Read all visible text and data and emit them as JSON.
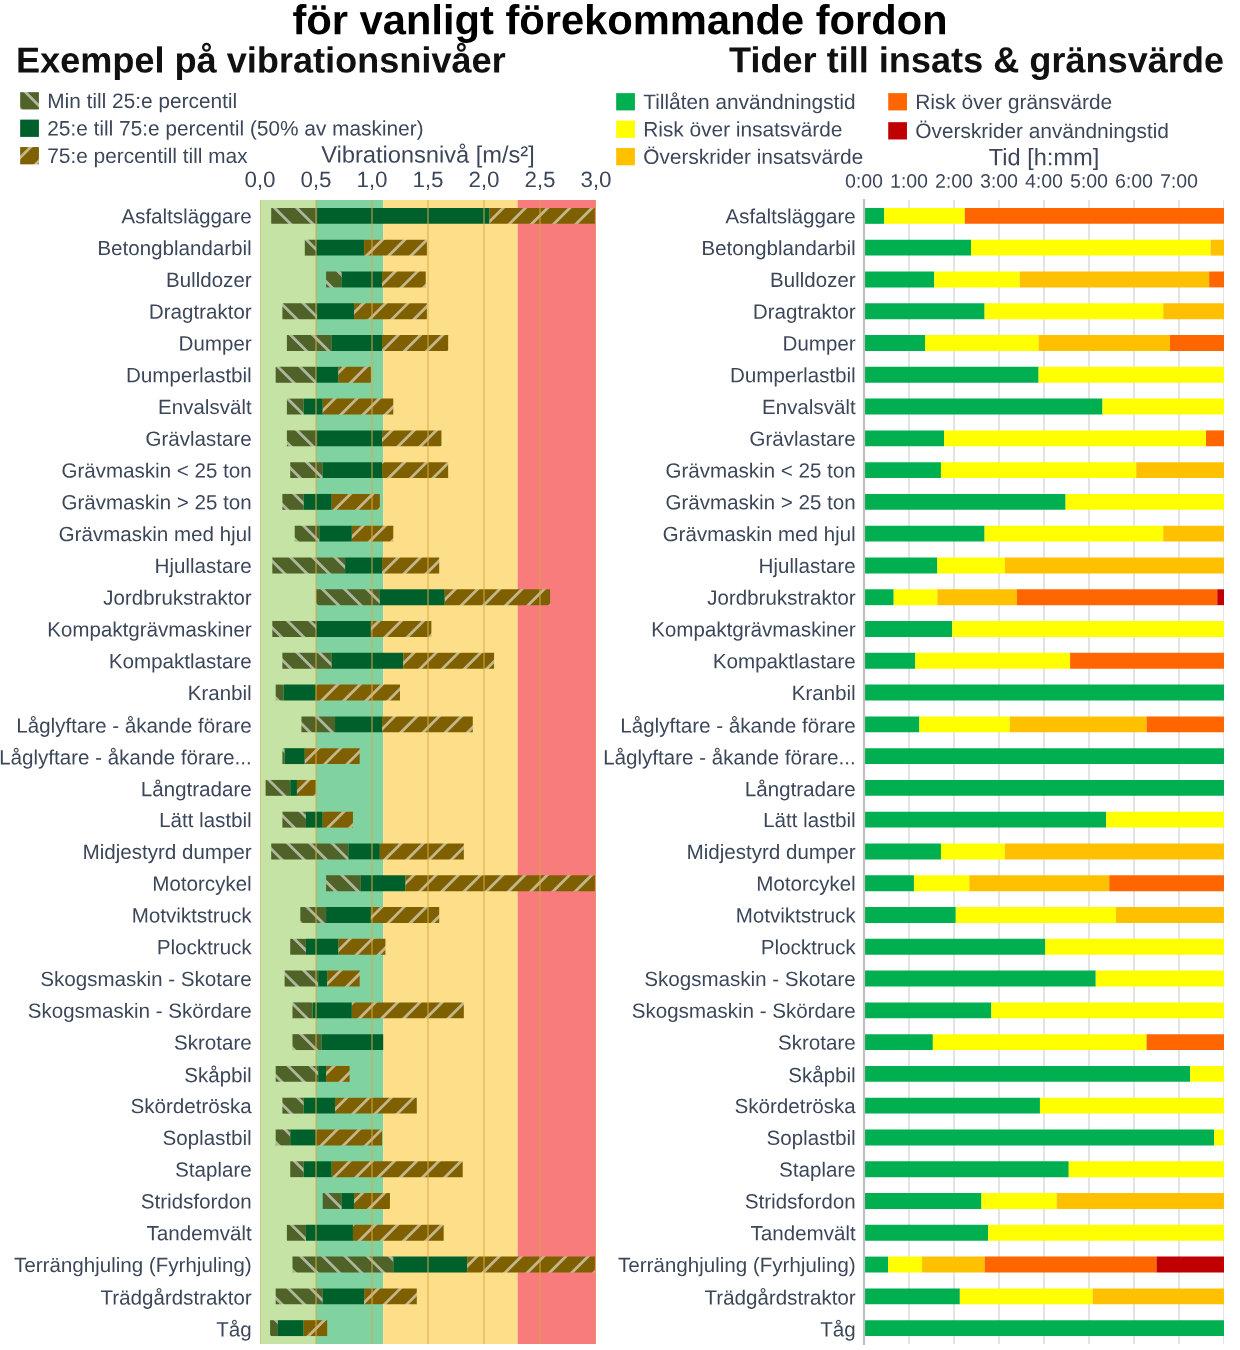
{
  "chart_data": [
    {
      "type": "bar",
      "orientation": "horizontal",
      "title": "Exempel på vibrationsnivåer",
      "xlabel": "Vibrationsnivå [m/s²]",
      "annotations": [
        "för vanligt förekommande fordon"
      ],
      "categories": [
        "Asfaltsläggare",
        "Betongblandarbil",
        "Bulldozer",
        "Dragtraktor",
        "Dumper",
        "Dumperlastbil",
        "Envalsvält",
        "Grävlastare",
        "Grävmaskin < 25 ton",
        "Grävmaskin > 25 ton",
        "Grävmaskin med hjul",
        "Hjullastare",
        "Jordbrukstraktor",
        "Kompaktgrävmaskiner",
        "Kompaktlastare",
        "Kranbil",
        "Låglyftare - åkande förare",
        "Låglyftare - åkande förare...",
        "Långtradare",
        "Lätt lastbil",
        "Midjestyrd dumper",
        "Motorcykel",
        "Motviktstruck",
        "Plocktruck",
        "Skogsmaskin - Skotare",
        "Skogsmaskin - Skördare",
        "Skrotare",
        "Skåpbil",
        "Skördetröska",
        "Soplastbil",
        "Staplare",
        "Stridsfordon",
        "Tandemvält",
        "Terränghjuling (Fyrhjuling)",
        "Trädgårdstraktor",
        "Tåg"
      ],
      "series": [
        {
          "name": "Min till 25:e percentil",
          "color": "#4f6228",
          "base": [
            0.1,
            0.4,
            0.59,
            0.2,
            0.24,
            0.14,
            0.24,
            0.24,
            0.27,
            0.2,
            0.31,
            0.11,
            0.5,
            0.11,
            0.2,
            0.14,
            0.37,
            0.2,
            0.05,
            0.2,
            0.1,
            0.59,
            0.36,
            0.27,
            0.22,
            0.29,
            0.29,
            0.14,
            0.2,
            0.14,
            0.27,
            0.56,
            0.24,
            0.29,
            0.14,
            0.09
          ],
          "values": [
            0.41,
            0.1,
            0.14,
            0.31,
            0.4,
            0.36,
            0.15,
            0.27,
            0.29,
            0.19,
            0.22,
            0.65,
            0.57,
            0.39,
            0.44,
            0.07,
            0.3,
            0.02,
            0.22,
            0.21,
            0.69,
            0.31,
            0.23,
            0.14,
            0.3,
            0.18,
            0.26,
            0.38,
            0.19,
            0.13,
            0.12,
            0.17,
            0.17,
            0.9,
            0.42,
            0.07
          ]
        },
        {
          "name": "25:e till 75:e percentil (50% av maskiner)",
          "color": "#00602c",
          "base": [
            0.51,
            0.5,
            0.73,
            0.51,
            0.64,
            0.5,
            0.39,
            0.51,
            0.56,
            0.39,
            0.53,
            0.76,
            1.07,
            0.5,
            0.64,
            0.21,
            0.67,
            0.22,
            0.27,
            0.41,
            0.79,
            0.9,
            0.59,
            0.41,
            0.52,
            0.47,
            0.55,
            0.52,
            0.39,
            0.27,
            0.39,
            0.73,
            0.41,
            1.19,
            0.56,
            0.16
          ],
          "values": [
            1.54,
            0.43,
            0.36,
            0.33,
            0.45,
            0.2,
            0.17,
            0.58,
            0.53,
            0.25,
            0.29,
            0.33,
            0.58,
            0.49,
            0.64,
            0.29,
            0.42,
            0.18,
            0.06,
            0.15,
            0.28,
            0.4,
            0.4,
            0.29,
            0.08,
            0.35,
            0.55,
            0.07,
            0.28,
            0.23,
            0.25,
            0.11,
            0.42,
            0.66,
            0.37,
            0.23
          ]
        },
        {
          "name": "75:e percentill till max",
          "color": "#7f6000",
          "base": [
            2.05,
            0.93,
            1.09,
            0.84,
            1.09,
            0.7,
            0.56,
            1.09,
            1.09,
            0.64,
            0.82,
            1.09,
            1.65,
            0.99,
            1.28,
            0.5,
            1.09,
            0.4,
            0.33,
            0.56,
            1.07,
            1.3,
            0.99,
            0.7,
            0.6,
            0.82,
            null,
            0.59,
            0.67,
            0.5,
            0.64,
            0.84,
            0.83,
            1.85,
            0.93,
            0.39
          ],
          "values": [
            0.94,
            0.56,
            0.39,
            0.65,
            0.59,
            0.29,
            0.63,
            0.53,
            0.59,
            0.43,
            0.37,
            0.51,
            0.94,
            0.54,
            0.81,
            0.75,
            0.81,
            0.49,
            0.17,
            0.27,
            0.75,
            1.69,
            0.61,
            0.42,
            0.29,
            1.0,
            null,
            0.21,
            0.73,
            0.59,
            1.17,
            0.32,
            0.81,
            1.14,
            0.47,
            0.21
          ]
        }
      ],
      "xlim": [
        0,
        3
      ],
      "xticks": [
        {
          "value": 0,
          "label": "0,0"
        },
        {
          "value": 0.5,
          "label": "0,5"
        },
        {
          "value": 1,
          "label": "1,0"
        },
        {
          "value": 1.5,
          "label": "1,5"
        },
        {
          "value": 2,
          "label": "2,0"
        },
        {
          "value": 2.5,
          "label": "2,5"
        },
        {
          "value": 3,
          "label": "3,0"
        }
      ],
      "bands": [
        {
          "axis": "x",
          "from": 0,
          "to": 0.5,
          "label": null,
          "color": "#c5e3a5"
        },
        {
          "axis": "x",
          "from": 0.5,
          "to": 1.1,
          "label": null,
          "color": "#80d3a1"
        },
        {
          "axis": "x",
          "from": 1.1,
          "to": 2.3,
          "label": null,
          "color": "#fddf8a"
        },
        {
          "axis": "x",
          "from": 2.3,
          "to": 3,
          "label": null,
          "color": "#f87c7c"
        }
      ],
      "grid": "x",
      "legend": "top left"
    },
    {
      "type": "bar",
      "orientation": "horizontal",
      "stacked": true,
      "title": "Tider till insats & gränsvärde",
      "xlabel": "Tid [h:mm]",
      "categories": [
        "Asfaltsläggare",
        "Betongblandarbil",
        "Bulldozer",
        "Dragtraktor",
        "Dumper",
        "Dumperlastbil",
        "Envalsvält",
        "Grävlastare",
        "Grävmaskin < 25 ton",
        "Grävmaskin > 25 ton",
        "Grävmaskin med hjul",
        "Hjullastare",
        "Jordbrukstraktor",
        "Kompaktgrävmaskiner",
        "Kompaktlastare",
        "Kranbil",
        "Låglyftare - åkande förare",
        "Låglyftare - åkande förare...",
        "Långtradare",
        "Lätt lastbil",
        "Midjestyrd dumper",
        "Motorcykel",
        "Motviktstruck",
        "Plocktruck",
        "Skogsmaskin - Skotare",
        "Skogsmaskin - Skördare",
        "Skrotare",
        "Skåpbil",
        "Skördetröska",
        "Soplastbil",
        "Staplare",
        "Stridsfordon",
        "Tandemvält",
        "Terränghjuling (Fyrhjuling)",
        "Trädgårdstraktor",
        "Tåg"
      ],
      "series": [
        {
          "name": "Tillåten användningstid",
          "color": "#00b050",
          "values": [
            0.45,
            2.38,
            1.56,
            2.68,
            1.36,
            3.88,
            5.3,
            1.78,
            1.71,
            4.48,
            2.68,
            1.63,
            0.66,
            1.96,
            1.14,
            8,
            1.23,
            8,
            8,
            5.38,
            1.71,
            1.11,
            2.04,
            4.03,
            5.15,
            2.83,
            1.53,
            7.25,
            3.91,
            7.78,
            4.55,
            2.61,
            2.76,
            0.54,
            2.13,
            8
          ]
        },
        {
          "name": "Risk över insatsvärde",
          "color": "#ffff00",
          "values": [
            1.79,
            5.32,
            1.9,
            3.97,
            2.52,
            4.12,
            2.7,
            5.82,
            4.34,
            3.52,
            3.97,
            1.5,
            0.97,
            6.04,
            3.44,
            0,
            2.01,
            0,
            0,
            2.62,
            1.42,
            1.23,
            3.56,
            3.97,
            2.85,
            5.17,
            4.75,
            0.75,
            4.09,
            0.22,
            3.45,
            1.67,
            5.24,
            0.75,
            2.95,
            0
          ]
        },
        {
          "name": "Överskrider insatsvärde",
          "color": "#ffc000",
          "values": [
            0,
            0.3,
            4.21,
            1.35,
            2.92,
            0,
            0,
            0,
            1.95,
            0,
            1.35,
            4.87,
            1.77,
            0,
            0,
            0,
            3.04,
            0,
            0,
            0,
            4.87,
            3.11,
            2.4,
            0,
            0,
            0,
            0,
            0,
            0,
            0,
            0,
            3.72,
            0,
            1.39,
            2.92,
            0
          ]
        },
        {
          "name": "Risk över gränsvärde",
          "color": "#ff6600",
          "values": [
            5.76,
            0,
            0.33,
            0,
            1.2,
            0,
            0,
            0.4,
            0,
            0,
            0,
            0,
            4.45,
            0,
            3.42,
            0,
            1.72,
            0,
            0,
            0,
            0,
            2.55,
            0,
            0,
            0,
            0,
            1.72,
            0,
            0,
            0,
            0,
            0,
            0,
            3.82,
            0,
            0
          ]
        },
        {
          "name": "Överskrider användningstid",
          "color": "#c00000",
          "values": [
            0,
            0,
            0,
            0,
            0,
            0,
            0,
            0,
            0,
            0,
            0,
            0,
            0.15,
            0,
            0,
            0,
            0,
            0,
            0,
            0,
            0,
            0,
            0,
            0,
            0,
            0,
            0,
            0,
            0,
            0,
            0,
            0,
            0,
            1.5,
            0,
            0
          ]
        }
      ],
      "xlim": [
        0,
        8
      ],
      "xticks": [
        {
          "value": 0,
          "label": "0:00"
        },
        {
          "value": 1,
          "label": "1:00"
        },
        {
          "value": 2,
          "label": "2:00"
        },
        {
          "value": 3,
          "label": "3:00"
        },
        {
          "value": 4,
          "label": "4:00"
        },
        {
          "value": 5,
          "label": "5:00"
        },
        {
          "value": 6,
          "label": "6:00"
        },
        {
          "value": 7,
          "label": "7:00"
        },
        {
          "value": 8,
          "label": null
        }
      ],
      "grid": "x",
      "legend": "top left"
    }
  ]
}
